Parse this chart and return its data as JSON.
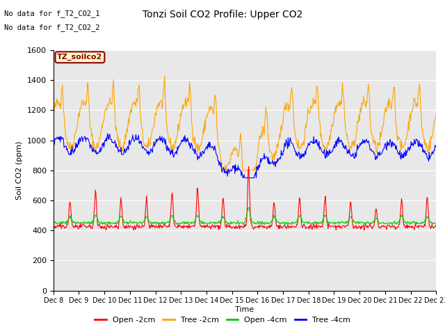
{
  "title": "Tonzi Soil CO2 Profile: Upper CO2",
  "ylabel": "Soil CO2 (ppm)",
  "xlabel": "Time",
  "annotation_lines": [
    "No data for f_T2_CO2_1",
    "No data for f_T2_CO2_2"
  ],
  "legend_label_box": "TZ_soilco2",
  "legend_entries": [
    "Open -2cm",
    "Tree -2cm",
    "Open -4cm",
    "Tree -4cm"
  ],
  "legend_colors": [
    "#ff0000",
    "#ffa500",
    "#00cc00",
    "#0000ff"
  ],
  "ylim": [
    0,
    1600
  ],
  "yticks": [
    0,
    200,
    400,
    600,
    800,
    1000,
    1200,
    1400,
    1600
  ],
  "plot_bg_color": "#e8e8e8",
  "n_days": 15,
  "start_day": 8,
  "seed": 42
}
